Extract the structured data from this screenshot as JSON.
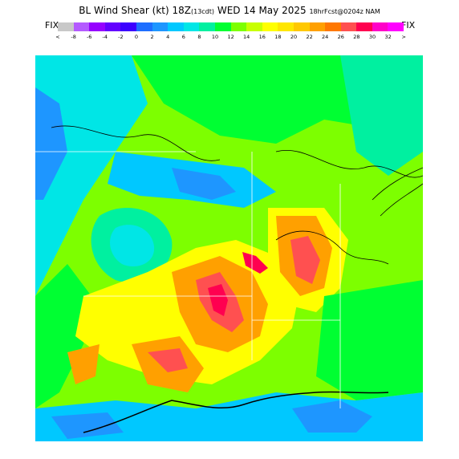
{
  "title": {
    "main": "BL Wind Shear (kt) 18Z",
    "local_time": "(13cdt)",
    "date": "WED 14 May 2025",
    "forecast": "18hrFcst@0204z NAM"
  },
  "legend": {
    "fix_left": "FIX",
    "fix_right": "FIX",
    "tick_labels": [
      "<",
      "-8",
      "-6",
      "-4",
      "-2",
      "0",
      "2",
      "4",
      "6",
      "8",
      "10",
      "12",
      "14",
      "16",
      "18",
      "20",
      "22",
      "24",
      "26",
      "28",
      "30",
      "32",
      ">"
    ],
    "colors": [
      "#c8c8c8",
      "#b45aff",
      "#9600ff",
      "#6400ff",
      "#3c00ff",
      "#1e6eff",
      "#1e96ff",
      "#00c8ff",
      "#00e6e6",
      "#00f0a0",
      "#00ff32",
      "#7dff00",
      "#c8ff00",
      "#ffff00",
      "#ffe600",
      "#ffc800",
      "#ffa000",
      "#ff7800",
      "#ff5050",
      "#ff0050",
      "#ff00c8",
      "#ff00ff"
    ]
  },
  "map": {
    "field": "boundary layer wind shear (kt)",
    "region": "south-central United States and Gulf of Mexico coast"
  }
}
